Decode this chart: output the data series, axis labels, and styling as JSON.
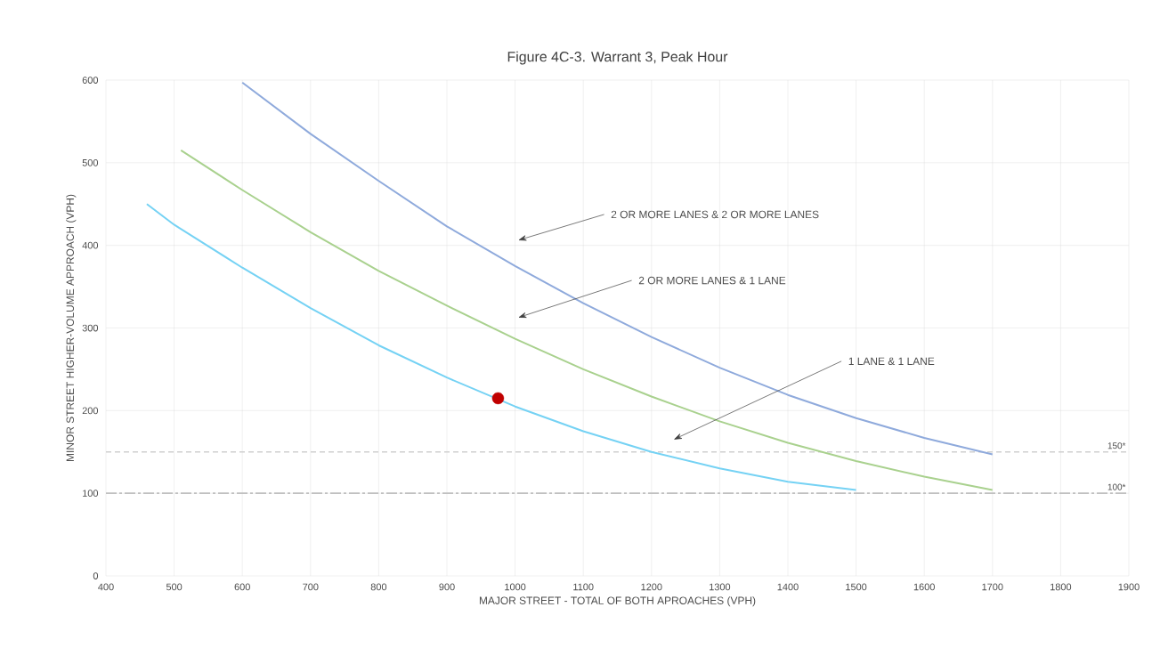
{
  "chart_data": {
    "type": "line",
    "title": "Figure 4C-3. Warrant 3, Peak Hour",
    "xlabel": "MAJOR STREET - TOTAL OF BOTH APROACHES (VPH)",
    "ylabel": "MINOR STREET HIGHER-VOLUME APPROACH (VPH)",
    "xlim": [
      400,
      1900
    ],
    "ylim": [
      0,
      600
    ],
    "xticks": [
      400,
      500,
      600,
      700,
      800,
      900,
      1000,
      1100,
      1200,
      1300,
      1400,
      1500,
      1600,
      1700,
      1800,
      1900
    ],
    "yticks": [
      0,
      100,
      200,
      300,
      400,
      500,
      600
    ],
    "grid": true,
    "marker": "none",
    "line_style": "solid",
    "series": [
      {
        "color": "#8faadc",
        "x": [
          600,
          700,
          800,
          900,
          1000,
          1100,
          1200,
          1300,
          1400,
          1500,
          1600,
          1700
        ],
        "values": [
          597,
          535,
          478,
          423,
          375,
          330,
          289,
          252,
          219,
          191,
          167,
          147
        ]
      },
      {
        "color": "#a9d18e",
        "x": [
          510,
          600,
          700,
          800,
          900,
          1000,
          1100,
          1200,
          1300,
          1400,
          1500,
          1600,
          1700
        ],
        "values": [
          515,
          467,
          416,
          369,
          327,
          287,
          250,
          217,
          187,
          161,
          139,
          120,
          104
        ]
      },
      {
        "color": "#75d2f4",
        "x": [
          460,
          500,
          600,
          700,
          800,
          900,
          1000,
          1100,
          1200,
          1300,
          1400,
          1500
        ],
        "values": [
          450,
          425,
          373,
          324,
          279,
          240,
          205,
          175,
          150,
          130,
          114,
          104
        ]
      },
      {
        "type": "scatter",
        "marker": "circle",
        "color": "#c00000",
        "x": [
          975
        ],
        "values": [
          215
        ]
      }
    ],
    "ref_lines": [
      {
        "axis": "y",
        "value": 150,
        "label": "150*",
        "color": "#d0d0d0",
        "line_style": "dashed"
      },
      {
        "axis": "y",
        "value": 100,
        "label": "100*",
        "color": "#c0c0c0",
        "line_style": "dashdot"
      }
    ],
    "annotations": [
      "2 OR MORE LANES & 2 OR MORE LANES",
      "2 OR MORE LANES & 1 LANE",
      "1 LANE & 1 LANE"
    ]
  }
}
